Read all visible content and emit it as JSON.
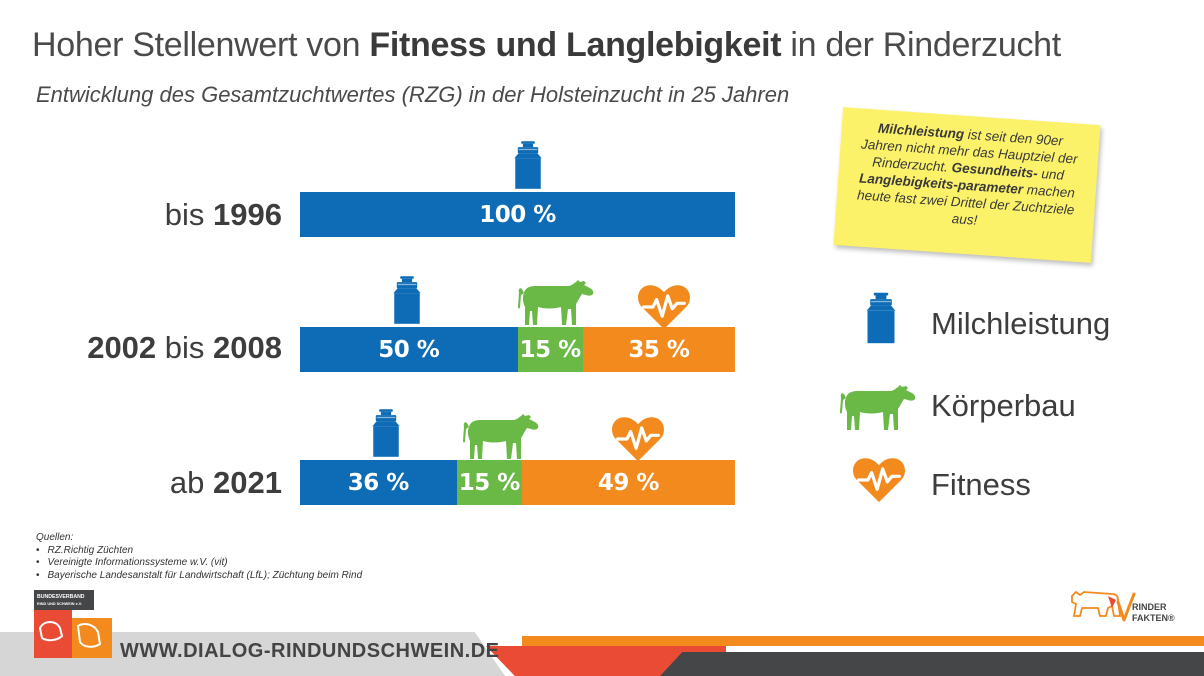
{
  "title": {
    "normal_1": "Hoher Stellenwert von ",
    "bold": "Fitness und Langlebigkeit",
    "normal_2": " in der Rinderzucht"
  },
  "subtitle": "Entwicklung des Gesamtzuchtwertes (RZG) in der Holsteinzucht in 25 Jahren",
  "rows": [
    {
      "label_parts": [
        {
          "text": "bis ",
          "bold": false
        },
        {
          "text": "1996",
          "bold": true
        }
      ]
    },
    {
      "label_parts": [
        {
          "text": "2002",
          "bold": true
        },
        {
          "text": " bis ",
          "bold": false
        },
        {
          "text": "2008",
          "bold": true
        }
      ]
    },
    {
      "label_parts": [
        {
          "text": "ab ",
          "bold": false
        },
        {
          "text": "2021",
          "bold": true
        }
      ]
    }
  ],
  "chart_data": {
    "type": "bar",
    "stacked": true,
    "orientation": "horizontal",
    "categories": [
      "bis 1996",
      "2002 bis 2008",
      "ab 2021"
    ],
    "series": [
      {
        "name": "Milchleistung",
        "values": [
          100,
          50,
          36
        ],
        "labels": [
          "100 %",
          "50 %",
          "36 %"
        ],
        "color": "#0d6cb5"
      },
      {
        "name": "Körperbau",
        "values": [
          0,
          15,
          15
        ],
        "labels": [
          "",
          "15 %",
          "15 %"
        ],
        "color": "#6ab846"
      },
      {
        "name": "Fitness",
        "values": [
          0,
          35,
          49
        ],
        "labels": [
          "",
          "35 %",
          "49 %"
        ],
        "color": "#f28a1e"
      }
    ],
    "xlim": [
      0,
      100
    ],
    "grid": false,
    "legend_position": "right"
  },
  "note": {
    "bold_1": "Milchleistung",
    "text_1": " ist seit den 90er Jahren nicht mehr das Hauptziel der Rinderzucht. ",
    "bold_2": "Gesundheits-",
    "text_2": " und ",
    "bold_3": "Langlebigkeits-parameter",
    "text_3": " machen heute fast zwei Drittel der Zuchtziele aus!"
  },
  "legend": [
    {
      "label": "Milchleistung",
      "icon": "milk-can-icon"
    },
    {
      "label": "Körperbau",
      "icon": "cow-icon"
    },
    {
      "label": "Fitness",
      "icon": "heart-pulse-icon"
    }
  ],
  "sources": {
    "heading": "Quellen:",
    "items": [
      "RZ.Richtig Züchten",
      "Vereinigte Informationssysteme w.V. (vit)",
      "Bayerische Landesanstalt für Landwirtschaft (LfL); Züchtung beim Rind"
    ]
  },
  "footer": {
    "url": "WWW.DIALOG-RINDUNDSCHWEIN.DE"
  },
  "logos": {
    "bundesverband": [
      "BUNDESVERBAND",
      "RIND UND SCHWEIN e.V."
    ],
    "rinderfakten": [
      "RINDER",
      "FAKTEN®"
    ]
  },
  "colors": {
    "milk": "#0d6cb5",
    "body": "#6ab846",
    "fitness": "#f28a1e",
    "note": "#fcf26a"
  }
}
